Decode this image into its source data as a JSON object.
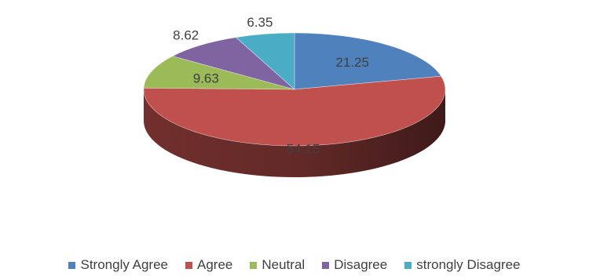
{
  "chart_data": {
    "type": "pie",
    "style": "3d",
    "categories": [
      "Strongly Agree",
      "Agree",
      "Neutral",
      "Disagree",
      "strongly Disagree"
    ],
    "values": [
      21.25,
      54.15,
      9.63,
      8.62,
      6.35
    ],
    "value_labels": [
      "21.25",
      "54.15",
      "9.63",
      "8.62",
      "6.35"
    ],
    "colors": [
      "#4f81bd",
      "#c0504d",
      "#9bbb59",
      "#8064a2",
      "#4bacc6"
    ],
    "legend_position": "bottom"
  }
}
